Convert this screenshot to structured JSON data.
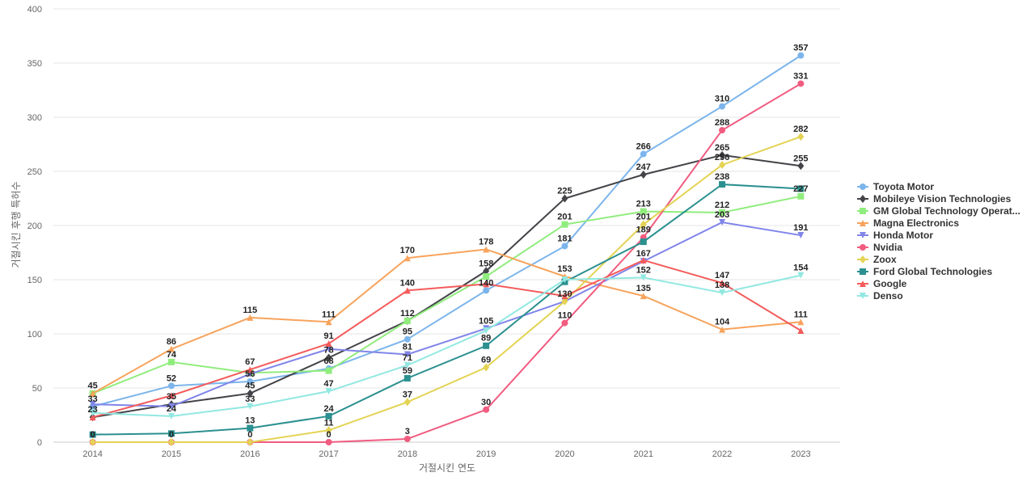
{
  "chart_data": {
    "type": "line",
    "xlabel": "거절시킨 연도",
    "ylabel": "거절시킨 후행 특허수",
    "x": [
      2014,
      2015,
      2016,
      2017,
      2018,
      2019,
      2020,
      2021,
      2022,
      2023
    ],
    "ylim": [
      0,
      400
    ],
    "yticks": [
      0,
      50,
      100,
      150,
      200,
      250,
      300,
      350,
      400
    ],
    "grid": true,
    "legend_position": "right",
    "series": [
      {
        "name": "Toyota Motor",
        "color": "#7cb5ec",
        "marker": "circle",
        "values": [
          33,
          52,
          56,
          68,
          95,
          140,
          181,
          266,
          310,
          357
        ]
      },
      {
        "name": "Mobileye Vision Technologies",
        "color": "#434348",
        "marker": "diamond",
        "values": [
          23,
          35,
          45,
          78,
          112,
          158,
          225,
          247,
          265,
          255
        ]
      },
      {
        "name": "GM Global Technology Operat...",
        "color": "#90ed7d",
        "marker": "square",
        "values": [
          45,
          74,
          64,
          66,
          112,
          153,
          201,
          213,
          212,
          227
        ]
      },
      {
        "name": "Magna Electronics",
        "color": "#f7a35c",
        "marker": "triangle",
        "values": [
          45,
          86,
          115,
          111,
          170,
          178,
          153,
          135,
          104,
          111
        ]
      },
      {
        "name": "Honda Motor",
        "color": "#8085e9",
        "marker": "triangle-down",
        "values": [
          35,
          33,
          63,
          86,
          81,
          105,
          130,
          167,
          203,
          191
        ]
      },
      {
        "name": "Nvidia",
        "color": "#f15c80",
        "marker": "circle",
        "values": [
          0,
          0,
          0,
          0,
          3,
          30,
          110,
          189,
          288,
          331
        ]
      },
      {
        "name": "Zoox",
        "color": "#e4d354",
        "marker": "diamond",
        "values": [
          0,
          0,
          0,
          11,
          37,
          69,
          130,
          201,
          256,
          282
        ]
      },
      {
        "name": "Ford Global Technologies",
        "color": "#2b908f",
        "marker": "square",
        "values": [
          7,
          8,
          13,
          24,
          59,
          89,
          148,
          185,
          238,
          234
        ]
      },
      {
        "name": "Google",
        "color": "#f45b5b",
        "marker": "triangle",
        "values": [
          23,
          43,
          67,
          91,
          140,
          146,
          135,
          168,
          147,
          103
        ]
      },
      {
        "name": "Denso",
        "color": "#91e8e1",
        "marker": "triangle-down",
        "values": [
          27,
          24,
          33,
          47,
          71,
          103,
          150,
          152,
          138,
          154
        ]
      }
    ],
    "data_labels": [
      {
        "x": 2014,
        "y": 45,
        "text": "45"
      },
      {
        "x": 2014,
        "y": 33,
        "text": "33"
      },
      {
        "x": 2014,
        "y": 23,
        "text": "23"
      },
      {
        "x": 2014,
        "y": 0,
        "text": "0"
      },
      {
        "x": 2014,
        "y": 0,
        "text": "0"
      },
      {
        "x": 2015,
        "y": 86,
        "text": "86"
      },
      {
        "x": 2015,
        "y": 74,
        "text": "74"
      },
      {
        "x": 2015,
        "y": 52,
        "text": "52"
      },
      {
        "x": 2015,
        "y": 35,
        "text": "35"
      },
      {
        "x": 2015,
        "y": 24,
        "text": "24"
      },
      {
        "x": 2015,
        "y": 0,
        "text": "0"
      },
      {
        "x": 2016,
        "y": 115,
        "text": "115"
      },
      {
        "x": 2016,
        "y": 67,
        "text": "67"
      },
      {
        "x": 2016,
        "y": 56,
        "text": "56"
      },
      {
        "x": 2016,
        "y": 45,
        "text": "45"
      },
      {
        "x": 2016,
        "y": 33,
        "text": "33"
      },
      {
        "x": 2016,
        "y": 13,
        "text": "13"
      },
      {
        "x": 2016,
        "y": 0,
        "text": "0"
      },
      {
        "x": 2017,
        "y": 111,
        "text": "111"
      },
      {
        "x": 2017,
        "y": 91,
        "text": "91"
      },
      {
        "x": 2017,
        "y": 78,
        "text": "78"
      },
      {
        "x": 2017,
        "y": 68,
        "text": "68"
      },
      {
        "x": 2017,
        "y": 47,
        "text": "47"
      },
      {
        "x": 2017,
        "y": 24,
        "text": "24"
      },
      {
        "x": 2017,
        "y": 11,
        "text": "11"
      },
      {
        "x": 2017,
        "y": 0,
        "text": "0"
      },
      {
        "x": 2018,
        "y": 170,
        "text": "170"
      },
      {
        "x": 2018,
        "y": 140,
        "text": "140"
      },
      {
        "x": 2018,
        "y": 112,
        "text": "112"
      },
      {
        "x": 2018,
        "y": 95,
        "text": "95"
      },
      {
        "x": 2018,
        "y": 81,
        "text": "81"
      },
      {
        "x": 2018,
        "y": 71,
        "text": "71"
      },
      {
        "x": 2018,
        "y": 59,
        "text": "59"
      },
      {
        "x": 2018,
        "y": 37,
        "text": "37"
      },
      {
        "x": 2018,
        "y": 3,
        "text": "3"
      },
      {
        "x": 2019,
        "y": 178,
        "text": "178"
      },
      {
        "x": 2019,
        "y": 158,
        "text": "158"
      },
      {
        "x": 2019,
        "y": 140,
        "text": "140"
      },
      {
        "x": 2019,
        "y": 105,
        "text": "105"
      },
      {
        "x": 2019,
        "y": 89,
        "text": "89"
      },
      {
        "x": 2019,
        "y": 69,
        "text": "69"
      },
      {
        "x": 2019,
        "y": 30,
        "text": "30"
      },
      {
        "x": 2020,
        "y": 225,
        "text": "225"
      },
      {
        "x": 2020,
        "y": 201,
        "text": "201"
      },
      {
        "x": 2020,
        "y": 181,
        "text": "181"
      },
      {
        "x": 2020,
        "y": 153,
        "text": "153"
      },
      {
        "x": 2020,
        "y": 130,
        "text": "130"
      },
      {
        "x": 2020,
        "y": 110,
        "text": "110"
      },
      {
        "x": 2021,
        "y": 266,
        "text": "266"
      },
      {
        "x": 2021,
        "y": 247,
        "text": "247"
      },
      {
        "x": 2021,
        "y": 213,
        "text": "213"
      },
      {
        "x": 2021,
        "y": 201,
        "text": "201"
      },
      {
        "x": 2021,
        "y": 189,
        "text": "189"
      },
      {
        "x": 2021,
        "y": 167,
        "text": "167"
      },
      {
        "x": 2021,
        "y": 152,
        "text": "152"
      },
      {
        "x": 2021,
        "y": 135,
        "text": "135"
      },
      {
        "x": 2022,
        "y": 310,
        "text": "310"
      },
      {
        "x": 2022,
        "y": 288,
        "text": "288"
      },
      {
        "x": 2022,
        "y": 265,
        "text": "265"
      },
      {
        "x": 2022,
        "y": 256,
        "text": "256"
      },
      {
        "x": 2022,
        "y": 238,
        "text": "238"
      },
      {
        "x": 2022,
        "y": 212,
        "text": "212"
      },
      {
        "x": 2022,
        "y": 203,
        "text": "203"
      },
      {
        "x": 2022,
        "y": 147,
        "text": "147"
      },
      {
        "x": 2022,
        "y": 138,
        "text": "138"
      },
      {
        "x": 2022,
        "y": 104,
        "text": "104"
      },
      {
        "x": 2023,
        "y": 357,
        "text": "357"
      },
      {
        "x": 2023,
        "y": 331,
        "text": "331"
      },
      {
        "x": 2023,
        "y": 282,
        "text": "282"
      },
      {
        "x": 2023,
        "y": 255,
        "text": "255"
      },
      {
        "x": 2023,
        "y": 227,
        "text": "227"
      },
      {
        "x": 2023,
        "y": 191,
        "text": "191"
      },
      {
        "x": 2023,
        "y": 154,
        "text": "154"
      },
      {
        "x": 2023,
        "y": 111,
        "text": "111"
      }
    ]
  }
}
